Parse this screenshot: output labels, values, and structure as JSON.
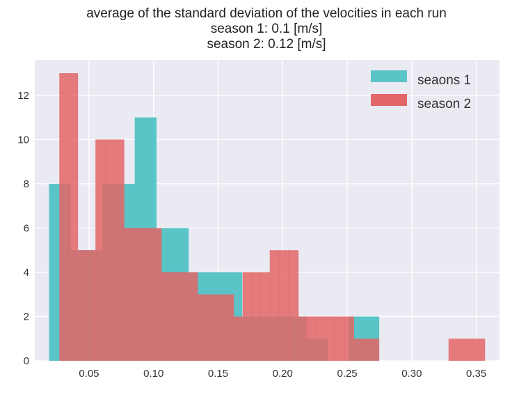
{
  "chart_data": {
    "type": "bar",
    "title_lines": [
      "average of the standard deviation of the velocities in each run",
      "season 1: 0.1 [m/s]",
      "season 2: 0.12 [m/s]"
    ],
    "xlabel": "",
    "ylabel": "",
    "xlim": [
      0.008,
      0.368
    ],
    "ylim": [
      0,
      13.6
    ],
    "x_ticks": [
      0.05,
      0.1,
      0.15,
      0.2,
      0.25,
      0.3,
      0.35
    ],
    "x_tick_labels": [
      "0.05",
      "0.10",
      "0.15",
      "0.20",
      "0.25",
      "0.30",
      "0.35"
    ],
    "y_ticks": [
      0,
      2,
      4,
      6,
      8,
      10,
      12
    ],
    "y_tick_labels": [
      "0",
      "2",
      "4",
      "6",
      "8",
      "10",
      "12"
    ],
    "grid": true,
    "legend_position": "top-right",
    "series": [
      {
        "name": "seaons 1",
        "color": "#5bc4c7",
        "bins": [
          {
            "x0": 0.019,
            "x1": 0.0273,
            "count": 8
          },
          {
            "x0": 0.0273,
            "x1": 0.0356,
            "count": 8
          },
          {
            "x0": 0.0356,
            "x1": 0.0439,
            "count": 5
          },
          {
            "x0": 0.0439,
            "x1": 0.0522,
            "count": 5
          },
          {
            "x0": 0.0522,
            "x1": 0.0605,
            "count": 5
          },
          {
            "x0": 0.0605,
            "x1": 0.0688,
            "count": 8
          },
          {
            "x0": 0.0688,
            "x1": 0.0771,
            "count": 8
          },
          {
            "x0": 0.0771,
            "x1": 0.0854,
            "count": 8
          },
          {
            "x0": 0.0854,
            "x1": 0.0937,
            "count": 11
          },
          {
            "x0": 0.0937,
            "x1": 0.102,
            "count": 11
          },
          {
            "x0": 0.102,
            "x1": 0.1103,
            "count": 6
          },
          {
            "x0": 0.1103,
            "x1": 0.1186,
            "count": 6
          },
          {
            "x0": 0.1186,
            "x1": 0.1269,
            "count": 6
          },
          {
            "x0": 0.1269,
            "x1": 0.1352,
            "count": 4
          },
          {
            "x0": 0.1352,
            "x1": 0.1435,
            "count": 4
          },
          {
            "x0": 0.1435,
            "x1": 0.1518,
            "count": 4
          },
          {
            "x0": 0.1518,
            "x1": 0.1601,
            "count": 4
          },
          {
            "x0": 0.1601,
            "x1": 0.1684,
            "count": 4
          },
          {
            "x0": 0.1684,
            "x1": 0.1767,
            "count": 2
          },
          {
            "x0": 0.1767,
            "x1": 0.185,
            "count": 2
          },
          {
            "x0": 0.185,
            "x1": 0.1933,
            "count": 2
          },
          {
            "x0": 0.1933,
            "x1": 0.2016,
            "count": 2
          },
          {
            "x0": 0.2016,
            "x1": 0.2099,
            "count": 2
          },
          {
            "x0": 0.2099,
            "x1": 0.2182,
            "count": 2
          },
          {
            "x0": 0.2182,
            "x1": 0.2265,
            "count": 1
          },
          {
            "x0": 0.2265,
            "x1": 0.2348,
            "count": 1
          },
          {
            "x0": 0.2348,
            "x1": 0.2431,
            "count": 0
          },
          {
            "x0": 0.2431,
            "x1": 0.2514,
            "count": 0
          },
          {
            "x0": 0.2514,
            "x1": 0.2597,
            "count": 2
          },
          {
            "x0": 0.2597,
            "x1": 0.268,
            "count": 2
          },
          {
            "x0": 0.268,
            "x1": 0.2745,
            "count": 2
          }
        ]
      },
      {
        "name": "season 2",
        "color": "#e36666",
        "bins": [
          {
            "x0": 0.027,
            "x1": 0.0345,
            "count": 13
          },
          {
            "x0": 0.0345,
            "x1": 0.0412,
            "count": 13
          },
          {
            "x0": 0.0412,
            "x1": 0.0482,
            "count": 5
          },
          {
            "x0": 0.0482,
            "x1": 0.055,
            "count": 5
          },
          {
            "x0": 0.055,
            "x1": 0.0625,
            "count": 10
          },
          {
            "x0": 0.0625,
            "x1": 0.0698,
            "count": 10
          },
          {
            "x0": 0.0698,
            "x1": 0.077,
            "count": 10
          },
          {
            "x0": 0.077,
            "x1": 0.084,
            "count": 6
          },
          {
            "x0": 0.084,
            "x1": 0.091,
            "count": 6
          },
          {
            "x0": 0.091,
            "x1": 0.0985,
            "count": 6
          },
          {
            "x0": 0.0985,
            "x1": 0.106,
            "count": 6
          },
          {
            "x0": 0.106,
            "x1": 0.113,
            "count": 4
          },
          {
            "x0": 0.113,
            "x1": 0.12,
            "count": 4
          },
          {
            "x0": 0.12,
            "x1": 0.127,
            "count": 4
          },
          {
            "x0": 0.127,
            "x1": 0.134,
            "count": 4
          },
          {
            "x0": 0.134,
            "x1": 0.141,
            "count": 3
          },
          {
            "x0": 0.141,
            "x1": 0.148,
            "count": 3
          },
          {
            "x0": 0.148,
            "x1": 0.155,
            "count": 3
          },
          {
            "x0": 0.155,
            "x1": 0.162,
            "count": 3
          },
          {
            "x0": 0.162,
            "x1": 0.169,
            "count": 2
          },
          {
            "x0": 0.169,
            "x1": 0.176,
            "count": 4
          },
          {
            "x0": 0.176,
            "x1": 0.183,
            "count": 4
          },
          {
            "x0": 0.183,
            "x1": 0.19,
            "count": 4
          },
          {
            "x0": 0.19,
            "x1": 0.197,
            "count": 5
          },
          {
            "x0": 0.197,
            "x1": 0.2045,
            "count": 5
          },
          {
            "x0": 0.2045,
            "x1": 0.212,
            "count": 5
          },
          {
            "x0": 0.212,
            "x1": 0.219,
            "count": 2
          },
          {
            "x0": 0.219,
            "x1": 0.226,
            "count": 2
          },
          {
            "x0": 0.226,
            "x1": 0.233,
            "count": 2
          },
          {
            "x0": 0.233,
            "x1": 0.24,
            "count": 2
          },
          {
            "x0": 0.24,
            "x1": 0.2475,
            "count": 2
          },
          {
            "x0": 0.2475,
            "x1": 0.255,
            "count": 2
          },
          {
            "x0": 0.255,
            "x1": 0.262,
            "count": 1
          },
          {
            "x0": 0.262,
            "x1": 0.269,
            "count": 1
          },
          {
            "x0": 0.269,
            "x1": 0.2745,
            "count": 1
          },
          {
            "x0": 0.2745,
            "x1": 0.3285,
            "count": 0
          },
          {
            "x0": 0.3285,
            "x1": 0.3565,
            "count": 1
          }
        ]
      }
    ]
  }
}
